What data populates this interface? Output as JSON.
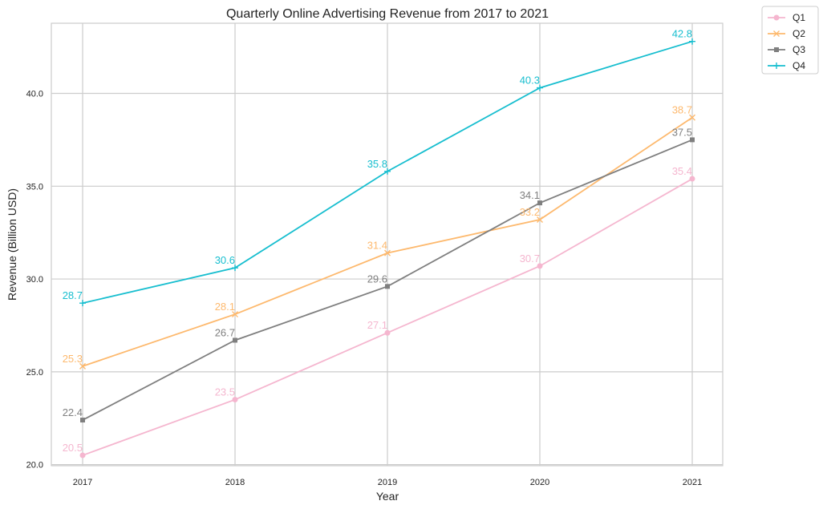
{
  "chart_data": {
    "type": "line",
    "title": "Quarterly Online Advertising Revenue from 2017 to 2021",
    "xlabel": "Year",
    "ylabel": "Revenue (Billion USD)",
    "categories": [
      "2017",
      "2018",
      "2019",
      "2020",
      "2021"
    ],
    "ylim": [
      19.94,
      43.78
    ],
    "yticks": [
      "20.0",
      "25.0",
      "30.0",
      "35.0",
      "40.0"
    ],
    "grid": true,
    "legend_position": "outside-top-right",
    "series": [
      {
        "name": "Q1",
        "values": [
          20.5,
          23.5,
          27.1,
          30.7,
          35.4
        ],
        "labels": [
          "20.5",
          "23.5",
          "27.1",
          "30.7",
          "35.4"
        ],
        "color": "#f5b6cf",
        "marker": "circle"
      },
      {
        "name": "Q2",
        "values": [
          25.3,
          28.1,
          31.4,
          33.2,
          38.7
        ],
        "labels": [
          "25.3",
          "28.1",
          "31.4",
          "33.2",
          "38.7"
        ],
        "color": "#fdb96e",
        "marker": "x"
      },
      {
        "name": "Q3",
        "values": [
          22.4,
          26.7,
          29.6,
          34.1,
          37.5
        ],
        "labels": [
          "22.4",
          "26.7",
          "29.6",
          "34.1",
          "37.5"
        ],
        "color": "#7f7f7f",
        "marker": "square"
      },
      {
        "name": "Q4",
        "values": [
          28.7,
          30.6,
          35.8,
          40.3,
          42.8
        ],
        "labels": [
          "28.7",
          "30.6",
          "35.8",
          "40.3",
          "42.8"
        ],
        "color": "#17becf",
        "marker": "plus"
      }
    ]
  }
}
